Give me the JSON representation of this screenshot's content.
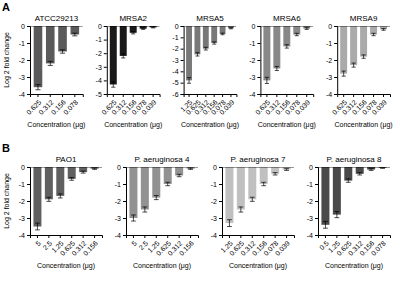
{
  "chart_data": [
    {
      "type": "bar",
      "title": "ATCC29213",
      "annotations": [
        "A"
      ],
      "xlabel": "Concentration (μg)",
      "ylabel": "Log 2 fold change",
      "categories": [
        "0.625",
        "0.312",
        "0.156",
        "0.078"
      ],
      "values": [
        -3.6,
        -2.2,
        -1.5,
        -0.5
      ],
      "errors": [
        0.15,
        0.12,
        0.1,
        0.08
      ],
      "color": "#5a5a5a",
      "ylim": [
        -4,
        0
      ],
      "yticks": [
        0,
        -1,
        -2,
        -3,
        -4
      ]
    },
    {
      "type": "bar",
      "title": "MRSA2",
      "xlabel": "Concentration (μg)",
      "categories": [
        "0.625",
        "0.312",
        "0.156",
        "0.078",
        "0.039"
      ],
      "values": [
        -4.3,
        -2.2,
        -0.5,
        -0.2,
        -0.1
      ],
      "errors": [
        0.2,
        0.15,
        0.08,
        0.05,
        0.04
      ],
      "color": "#1a1a1a",
      "ylim": [
        -5,
        0
      ],
      "yticks": [
        0,
        -1,
        -2,
        -3,
        -4,
        -5
      ]
    },
    {
      "type": "bar",
      "title": "MRSA5",
      "xlabel": "Concentration (μg)",
      "categories": [
        "1.25",
        "0.625",
        "0.312",
        "0.156",
        "0.078",
        "0.039"
      ],
      "values": [
        -4.8,
        -2.5,
        -2.0,
        -1.5,
        -0.7,
        -0.2
      ],
      "errors": [
        0.25,
        0.15,
        0.12,
        0.1,
        0.07,
        0.05
      ],
      "color": "#787878",
      "ylim": [
        -6,
        0
      ],
      "yticks": [
        0,
        -1,
        -2,
        -3,
        -4,
        -5,
        -6
      ]
    },
    {
      "type": "bar",
      "title": "MRSA6",
      "xlabel": "Concentration (μg)",
      "categories": [
        "0.625",
        "0.312",
        "0.156",
        "0.078",
        "0.039"
      ],
      "values": [
        -3.2,
        -2.5,
        -1.2,
        -0.5,
        -0.15
      ],
      "errors": [
        0.18,
        0.12,
        0.1,
        0.07,
        0.05
      ],
      "color": "#888888",
      "ylim": [
        -4,
        0
      ],
      "yticks": [
        0,
        -1,
        -2,
        -3,
        -4
      ]
    },
    {
      "type": "bar",
      "title": "MRSA9",
      "xlabel": "Concentration (μg)",
      "categories": [
        "0.625",
        "0.312",
        "0.156",
        "0.078",
        "0.039"
      ],
      "values": [
        -2.8,
        -2.3,
        -1.8,
        -0.5,
        -0.2
      ],
      "errors": [
        0.15,
        0.12,
        0.1,
        0.07,
        0.05
      ],
      "color": "#aaaaaa",
      "ylim": [
        -4,
        0
      ],
      "yticks": [
        0,
        -1,
        -2,
        -3,
        -4
      ]
    },
    {
      "type": "bar",
      "title": "PAO1",
      "annotations": [
        "B"
      ],
      "xlabel": "Concentration (μg)",
      "ylabel": "Log 2 fold change",
      "categories": [
        "5",
        "2.5",
        "1.25",
        "0.625",
        "0.312",
        "0.156"
      ],
      "values": [
        -3.5,
        -1.9,
        -1.7,
        -0.7,
        -0.3,
        -0.1
      ],
      "errors": [
        0.2,
        0.12,
        0.12,
        0.08,
        0.06,
        0.04
      ],
      "color": "#606060",
      "ylim": [
        -4,
        0
      ],
      "yticks": [
        0,
        -1,
        -2,
        -3,
        -4
      ]
    },
    {
      "type": "bar",
      "title": "P. aeruginosa 4",
      "xlabel": "Concentration (μg)",
      "categories": [
        "5",
        "2.5",
        "1.25",
        "0.625",
        "0.312",
        "0.156"
      ],
      "values": [
        -3.0,
        -2.5,
        -1.8,
        -1.0,
        -0.5,
        -0.1
      ],
      "errors": [
        0.18,
        0.15,
        0.12,
        0.1,
        0.07,
        0.04
      ],
      "color": "#929292",
      "ylim": [
        -4,
        0
      ],
      "yticks": [
        0,
        -1,
        -2,
        -3,
        -4
      ]
    },
    {
      "type": "bar",
      "title": "P. aeruginosa 7",
      "xlabel": "Concentration (μg)",
      "categories": [
        "1.25",
        "0.625",
        "0.312",
        "0.156",
        "0.078",
        "0.039"
      ],
      "values": [
        -3.3,
        -2.5,
        -1.9,
        -1.0,
        -0.4,
        -0.15
      ],
      "errors": [
        0.2,
        0.15,
        0.12,
        0.1,
        0.07,
        0.05
      ],
      "color": "#c0c0c0",
      "ylim": [
        -4,
        0
      ],
      "yticks": [
        0,
        -1,
        -2,
        -3,
        -4
      ]
    },
    {
      "type": "bar",
      "title": "P. aeruginosa 8",
      "xlabel": "Concentration (μg)",
      "categories": [
        "0.5",
        "1.25",
        "0.625",
        "0.312",
        "0.156",
        "0.078"
      ],
      "values": [
        -3.4,
        -2.8,
        -0.8,
        -0.4,
        -0.15,
        -0.05
      ],
      "errors": [
        0.2,
        0.18,
        0.1,
        0.07,
        0.05,
        0.03
      ],
      "color": "#4a4a4a",
      "ylim": [
        -4,
        0
      ],
      "yticks": [
        0,
        -1,
        -2,
        -3,
        -4
      ]
    }
  ]
}
